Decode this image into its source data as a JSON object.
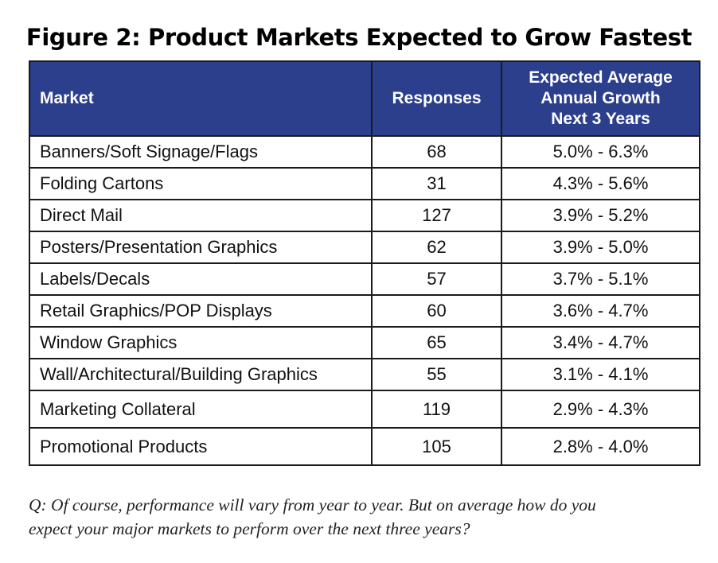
{
  "title": "Figure 2: Product Markets Expected to Grow Fastest",
  "colors": {
    "header_bg": "#2b3f8c",
    "header_text": "#ffffff",
    "border": "#1a1a1a"
  },
  "chart_data": {
    "type": "table",
    "title": "Figure 2: Product Markets Expected to Grow Fastest",
    "columns": [
      "Market",
      "Responses",
      [
        "Expected Average",
        "Annual Growth",
        "Next 3 Years"
      ]
    ],
    "rows": [
      {
        "market": "Banners/Soft Signage/Flags",
        "responses": "68",
        "growth": "5.0% - 6.3%"
      },
      {
        "market": "Folding Cartons",
        "responses": "31",
        "growth": "4.3% - 5.6%"
      },
      {
        "market": "Direct Mail",
        "responses": "127",
        "growth": "3.9% - 5.2%"
      },
      {
        "market": "Posters/Presentation Graphics",
        "responses": "62",
        "growth": "3.9% - 5.0%"
      },
      {
        "market": "Labels/Decals",
        "responses": "57",
        "growth": "3.7% - 5.1%"
      },
      {
        "market": "Retail Graphics/POP Displays",
        "responses": "60",
        "growth": "3.6% - 4.7%"
      },
      {
        "market": "Window Graphics",
        "responses": "65",
        "growth": "3.4% - 4.7%"
      },
      {
        "market": "Wall/Architectural/Building Graphics",
        "responses": "55",
        "growth": "3.1% - 4.1%"
      },
      {
        "market": "Marketing Collateral",
        "responses": "119",
        "growth": "2.9% - 4.3%"
      },
      {
        "market": "Promotional Products",
        "responses": "105",
        "growth": "2.8% - 4.0%"
      }
    ]
  },
  "footnote": {
    "line1": "Q: Of course, performance will vary from year to year. But on average how do you",
    "line2": "expect your major markets to perform over the next three years?"
  }
}
